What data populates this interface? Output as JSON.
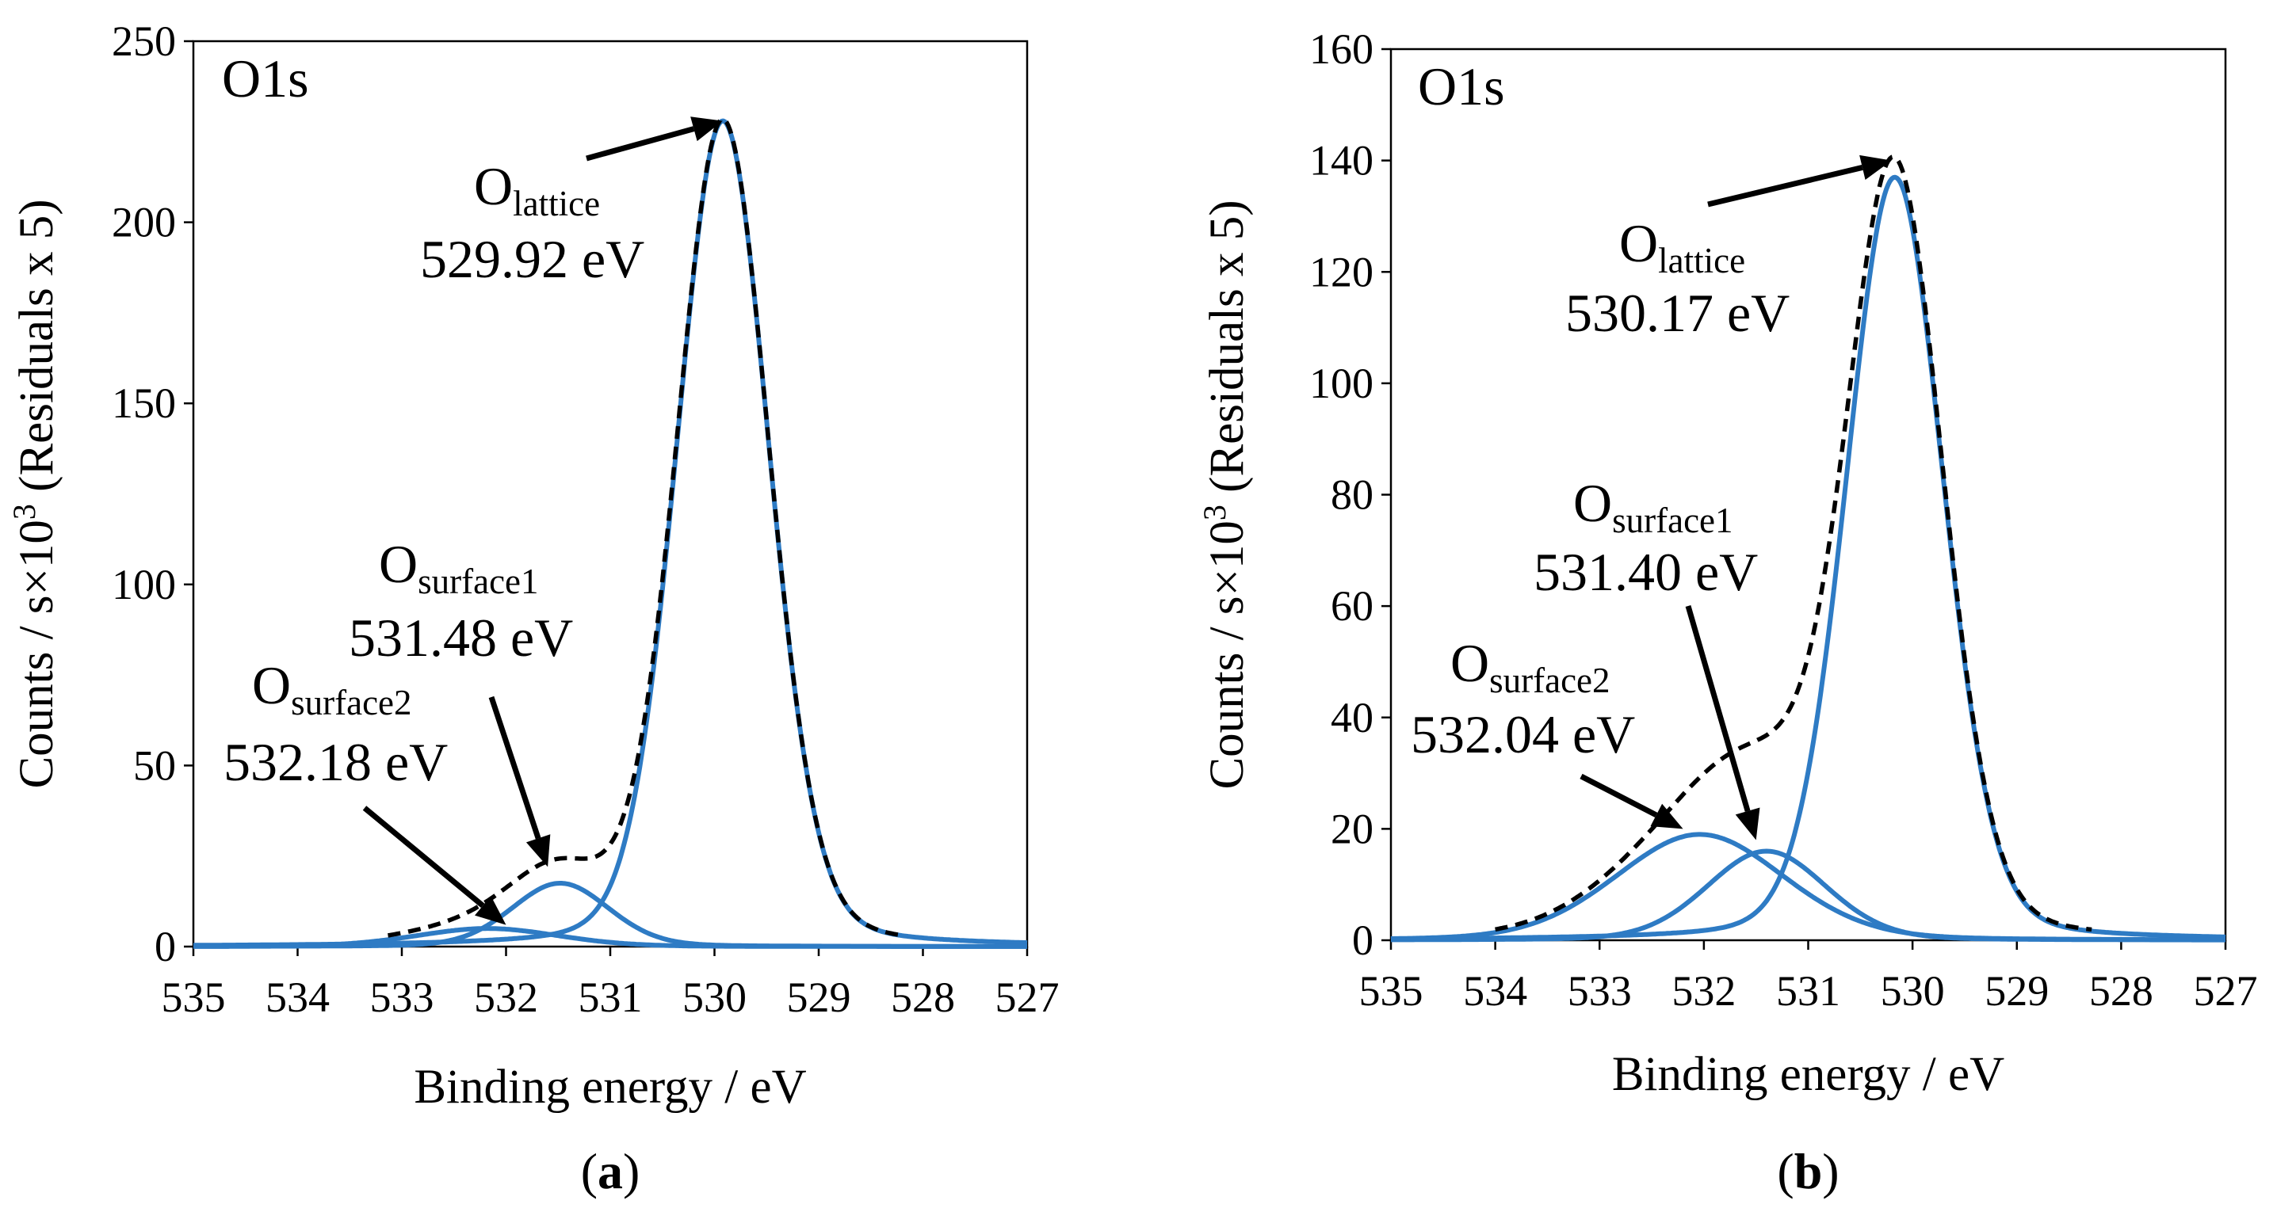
{
  "colors": {
    "component": "#2e7bc4",
    "envelope": "#000000",
    "axis": "#000000"
  },
  "chart_data": [
    {
      "type": "line",
      "caption_letter": "a",
      "title": "O1s",
      "xlabel": "Binding energy / eV",
      "ylabel_parts": [
        "Counts / s×10",
        "3",
        " (Residuals x 5)"
      ],
      "xlim": [
        535,
        527
      ],
      "ylim": [
        0,
        250
      ],
      "xticks": [
        535,
        534,
        533,
        532,
        531,
        530,
        529,
        528,
        527
      ],
      "yticks": [
        0,
        50,
        100,
        150,
        200,
        250
      ],
      "x_ticks_labels": [
        "535",
        "534",
        "533",
        "532",
        "531",
        "530",
        "529",
        "528",
        "527"
      ],
      "y_ticks_labels": [
        "0",
        "50",
        "100",
        "150",
        "200",
        "250"
      ],
      "series": [
        {
          "name": "O lattice component",
          "peak_center": 529.92,
          "peak_height": 228,
          "fwhm": 1.05,
          "style": "component"
        },
        {
          "name": "O surface1 component",
          "peak_center": 531.48,
          "peak_height": 17.5,
          "fwhm": 1.1,
          "style": "component"
        },
        {
          "name": "O surface2 component",
          "peak_center": 532.18,
          "peak_height": 5,
          "fwhm": 1.6,
          "style": "component"
        },
        {
          "name": "envelope",
          "style": "envelope"
        }
      ],
      "annotations": [
        {
          "name": "O",
          "sub": "lattice",
          "energy": "529.92 eV",
          "target": [
            529.92,
            228
          ]
        },
        {
          "name": "O",
          "sub": "surface1",
          "energy": "531.48 eV",
          "target": [
            531.6,
            22
          ]
        },
        {
          "name": "O",
          "sub": "surface2",
          "energy": "532.18 eV",
          "target": [
            532.0,
            6
          ]
        }
      ]
    },
    {
      "type": "line",
      "caption_letter": "b",
      "title": "O1s",
      "xlabel": "Binding energy / eV",
      "ylabel_parts": [
        "Counts / s×10",
        "3",
        " (Residuals x 5)"
      ],
      "xlim": [
        535,
        527
      ],
      "ylim": [
        0,
        160
      ],
      "xticks": [
        535,
        534,
        533,
        532,
        531,
        530,
        529,
        528,
        527
      ],
      "yticks": [
        0,
        20,
        40,
        60,
        80,
        100,
        120,
        140,
        160
      ],
      "x_ticks_labels": [
        "535",
        "534",
        "533",
        "532",
        "531",
        "530",
        "529",
        "528",
        "527"
      ],
      "y_ticks_labels": [
        "0",
        "20",
        "40",
        "60",
        "80",
        "100",
        "120",
        "140",
        "160"
      ],
      "series": [
        {
          "name": "O lattice component",
          "peak_center": 530.17,
          "peak_height": 137,
          "fwhm": 1.1,
          "style": "component"
        },
        {
          "name": "O surface1 component",
          "peak_center": 531.4,
          "peak_height": 16,
          "fwhm": 1.35,
          "style": "component"
        },
        {
          "name": "O surface2 component",
          "peak_center": 532.04,
          "peak_height": 19,
          "fwhm": 1.9,
          "style": "component"
        },
        {
          "name": "envelope",
          "style": "envelope"
        }
      ],
      "annotations": [
        {
          "name": "O",
          "sub": "lattice",
          "energy": "530.17 eV",
          "target": [
            530.2,
            140
          ]
        },
        {
          "name": "O",
          "sub": "surface1",
          "energy": "531.40 eV",
          "target": [
            531.5,
            18
          ]
        },
        {
          "name": "O",
          "sub": "surface2",
          "energy": "532.04 eV",
          "target": [
            532.2,
            20
          ]
        }
      ]
    }
  ]
}
